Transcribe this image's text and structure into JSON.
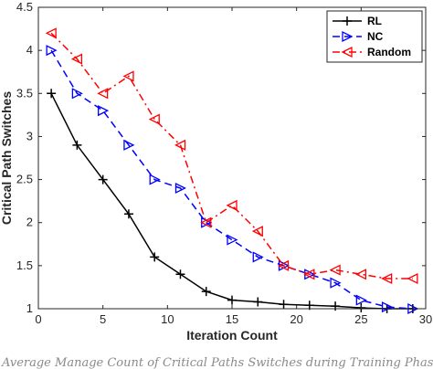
{
  "chart_data": {
    "type": "line",
    "title": "",
    "xlabel": "Iteration Count",
    "ylabel": "Critical Path Switches",
    "xlim": [
      0,
      30
    ],
    "ylim": [
      1,
      4.5
    ],
    "xticks": [
      0,
      5,
      10,
      15,
      20,
      25,
      30
    ],
    "yticks": [
      1,
      1.5,
      2,
      2.5,
      3,
      3.5,
      4,
      4.5
    ],
    "xtick_labels": [
      "0",
      "5",
      "10",
      "15",
      "20",
      "25",
      "30"
    ],
    "ytick_labels": [
      "1",
      "1.5",
      "2",
      "2.5",
      "3",
      "3.5",
      "4",
      "4.5"
    ],
    "grid": false,
    "legend_position": "top-right",
    "series": [
      {
        "name": "RL",
        "color": "#000000",
        "line_style": "solid",
        "marker": "plus",
        "x": [
          1,
          3,
          5,
          7,
          9,
          11,
          13,
          15,
          17,
          19,
          21,
          23,
          25,
          27,
          29
        ],
        "y": [
          3.5,
          2.9,
          2.5,
          2.1,
          1.6,
          1.4,
          1.2,
          1.1,
          1.08,
          1.05,
          1.04,
          1.03,
          1.01,
          1.0,
          1.0
        ]
      },
      {
        "name": "NC",
        "color": "#0000ff",
        "line_style": "dashed",
        "marker": "triangle-right",
        "x": [
          1,
          3,
          5,
          7,
          9,
          11,
          13,
          15,
          17,
          19,
          21,
          23,
          25,
          27,
          29
        ],
        "y": [
          4.0,
          3.5,
          3.3,
          2.9,
          2.5,
          2.4,
          2.0,
          1.8,
          1.6,
          1.5,
          1.4,
          1.3,
          1.1,
          1.02,
          1.0
        ]
      },
      {
        "name": "Random",
        "color": "#ff0000",
        "line_style": "dash-dot",
        "marker": "triangle-left",
        "x": [
          1,
          3,
          5,
          7,
          9,
          11,
          13,
          15,
          17,
          19,
          21,
          23,
          25,
          27,
          29
        ],
        "y": [
          4.2,
          3.9,
          3.5,
          3.7,
          3.2,
          2.9,
          2.0,
          2.2,
          1.9,
          1.5,
          1.4,
          1.45,
          1.4,
          1.35,
          1.35
        ]
      }
    ]
  },
  "caption": {
    "text": "Average Manage Count of Critical Paths Switches during Training Phase"
  }
}
